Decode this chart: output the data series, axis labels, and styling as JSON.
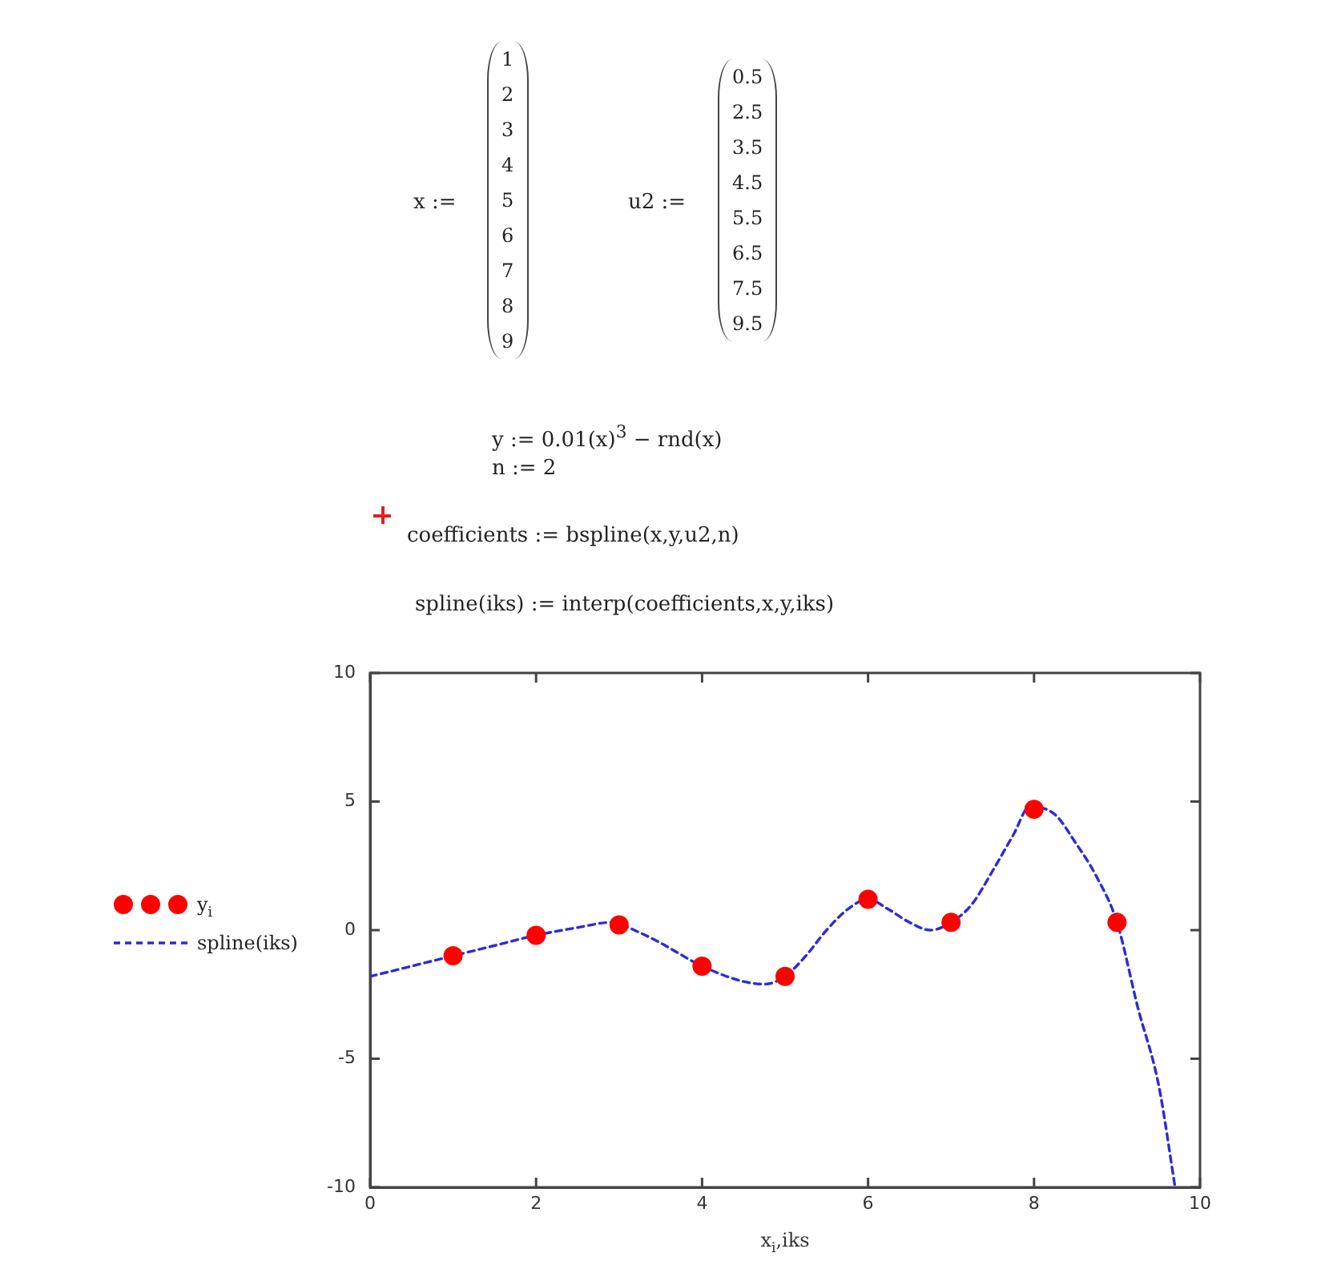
{
  "chart_data": {
    "type": "scatter",
    "xlabel": "x$_{i}$,iks",
    "x": [
      1,
      2,
      3,
      4,
      5,
      6,
      7,
      8,
      9
    ],
    "series": [
      {
        "name": "y$_{i}$",
        "color": "#ff0000",
        "marker": "circle",
        "values": [
          -1.0,
          -0.2,
          0.2,
          -1.4,
          -1.8,
          1.2,
          0.3,
          4.7,
          0.3
        ]
      },
      {
        "name": "spline(iks)",
        "type": "line",
        "color": "#2b2bd9",
        "marker": "none",
        "line_style": "dashed",
        "x": [
          0,
          0.5,
          1,
          1.5,
          2,
          2.5,
          2.9,
          3.25,
          3.5,
          4,
          4.5,
          4.75,
          5,
          5.25,
          5.5,
          5.75,
          6,
          6.25,
          6.5,
          6.75,
          7,
          7.25,
          7.5,
          7.75,
          7.95,
          8.25,
          8.5,
          8.75,
          9,
          9.25,
          9.5,
          9.7
        ],
        "values": [
          -1.8,
          -1.4,
          -1.0,
          -0.6,
          -0.2,
          0.1,
          0.3,
          -0.1,
          -0.5,
          -1.4,
          -2.0,
          -2.1,
          -1.8,
          -1.0,
          0.0,
          0.8,
          1.2,
          0.8,
          0.3,
          0.0,
          0.3,
          1.0,
          2.3,
          3.7,
          4.8,
          4.5,
          3.4,
          2.1,
          0.3,
          -3.0,
          -6.0,
          -10.0
        ]
      }
    ],
    "xlim": [
      0,
      10
    ],
    "xticks": [
      0,
      2,
      4,
      6,
      8,
      10
    ],
    "ylim": [
      -10,
      10
    ],
    "yticks": [
      -10,
      -5,
      0,
      5,
      10
    ],
    "legend": "left",
    "annotations": [
      "x :=",
      "1\n2\n3\n4\n5\n6\n7\n8\n9",
      "u2 :=",
      "0.5\n2.5\n3.5\n4.5\n5.5\n6.5\n7.5\n9.5",
      "y := 0.01(x)$^{3}$ − rnd(x)",
      "n := 2",
      "coefficients := bspline(x,y,u2,n)",
      "spline(iks) := interp(coefficients,x,y,iks)"
    ]
  }
}
